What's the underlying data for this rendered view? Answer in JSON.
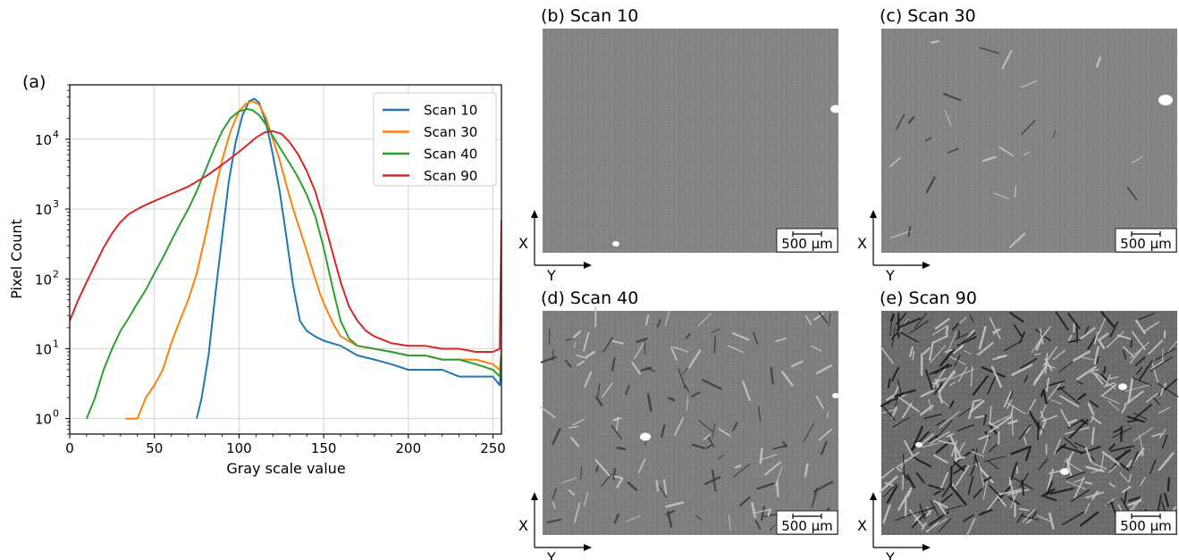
{
  "chart_data": [
    {
      "type": "line",
      "panel_label": "(a)",
      "title": "",
      "xlabel": "Gray scale value",
      "ylabel": "Pixel Count",
      "xlim": [
        0,
        255
      ],
      "ylim": [
        0.6,
        60000
      ],
      "y_scale": "log",
      "grid": true,
      "legend_placement": "top-right",
      "x_ticks": [
        0,
        50,
        100,
        150,
        200,
        250
      ],
      "y_ticks": [
        {
          "value": 1,
          "base": "10",
          "exp": "0"
        },
        {
          "value": 10,
          "base": "10",
          "exp": "1"
        },
        {
          "value": 100,
          "base": "10",
          "exp": "2"
        },
        {
          "value": 1000,
          "base": "10",
          "exp": "3"
        },
        {
          "value": 10000,
          "base": "10",
          "exp": "4"
        }
      ],
      "series": [
        {
          "name": "Scan 10",
          "color": "#1f77b4",
          "x": [
            75,
            78,
            82,
            86,
            90,
            94,
            98,
            102,
            106,
            109,
            112,
            116,
            120,
            124,
            128,
            132,
            136,
            140,
            145,
            150,
            155,
            160,
            170,
            180,
            190,
            200,
            210,
            220,
            230,
            240,
            250,
            254,
            255
          ],
          "y": [
            1,
            2,
            8,
            60,
            400,
            2500,
            9000,
            22000,
            35000,
            38000,
            33000,
            17000,
            6000,
            1800,
            400,
            80,
            25,
            18,
            15,
            13,
            12,
            11,
            8,
            7,
            6,
            5,
            5,
            5,
            4,
            4,
            4,
            3,
            6
          ]
        },
        {
          "name": "Scan 30",
          "color": "#ff7f0e",
          "x": [
            33,
            40,
            45,
            50,
            55,
            60,
            65,
            70,
            75,
            80,
            85,
            90,
            95,
            100,
            104,
            108,
            112,
            116,
            120,
            124,
            128,
            132,
            136,
            140,
            144,
            148,
            152,
            156,
            160,
            170,
            180,
            190,
            200,
            210,
            220,
            230,
            240,
            250,
            254,
            255
          ],
          "y": [
            1,
            1,
            2,
            3,
            5,
            12,
            25,
            50,
            120,
            400,
            1500,
            5000,
            13000,
            25000,
            32000,
            35000,
            31000,
            20000,
            10000,
            5000,
            2200,
            1000,
            500,
            250,
            120,
            60,
            35,
            22,
            15,
            11,
            10,
            9,
            8,
            8,
            7,
            7,
            7,
            6,
            5,
            10
          ]
        },
        {
          "name": "Scan 40",
          "color": "#2ca02c",
          "x": [
            10,
            15,
            20,
            25,
            30,
            35,
            40,
            45,
            50,
            55,
            60,
            65,
            70,
            75,
            80,
            85,
            90,
            95,
            100,
            105,
            108,
            112,
            116,
            120,
            125,
            130,
            135,
            140,
            145,
            150,
            155,
            160,
            165,
            170,
            180,
            190,
            200,
            210,
            220,
            230,
            240,
            250,
            254,
            255
          ],
          "y": [
            1,
            2,
            5,
            10,
            18,
            28,
            45,
            70,
            120,
            200,
            350,
            600,
            1000,
            1800,
            3500,
            7000,
            13000,
            20000,
            25000,
            27000,
            26000,
            22000,
            16000,
            11000,
            7000,
            4500,
            2800,
            1600,
            800,
            280,
            80,
            25,
            14,
            11,
            10,
            9,
            8,
            8,
            7,
            7,
            6,
            5,
            4,
            8
          ]
        },
        {
          "name": "Scan 90",
          "color": "#d62728",
          "x": [
            0,
            5,
            10,
            15,
            20,
            25,
            30,
            35,
            40,
            45,
            50,
            60,
            70,
            80,
            90,
            100,
            110,
            115,
            120,
            125,
            130,
            135,
            140,
            145,
            150,
            155,
            160,
            165,
            170,
            175,
            180,
            190,
            200,
            210,
            220,
            230,
            240,
            250,
            254,
            255
          ],
          "y": [
            25,
            50,
            90,
            160,
            280,
            450,
            650,
            850,
            1000,
            1150,
            1300,
            1650,
            2100,
            2900,
            4300,
            6600,
            10500,
            12500,
            13000,
            12000,
            9000,
            6000,
            3500,
            1800,
            700,
            250,
            90,
            40,
            25,
            18,
            15,
            12,
            11,
            11,
            10,
            10,
            9,
            9,
            10,
            700
          ]
        }
      ]
    }
  ],
  "panels": [
    {
      "title": "(b) Scan 10",
      "scale_bar": "500 µm",
      "axis_x": "X",
      "axis_y": "Y",
      "tone": "#858585"
    },
    {
      "title": "(c) Scan 30",
      "scale_bar": "500 µm",
      "axis_x": "X",
      "axis_y": "Y",
      "tone": "#848484"
    },
    {
      "title": "(d) Scan 40",
      "scale_bar": "500 µm",
      "axis_x": "X",
      "axis_y": "Y",
      "tone": "#7e7e7e"
    },
    {
      "title": "(e) Scan 90",
      "scale_bar": "500 µm",
      "axis_x": "X",
      "axis_y": "Y",
      "tone": "#6a6a6a"
    }
  ]
}
